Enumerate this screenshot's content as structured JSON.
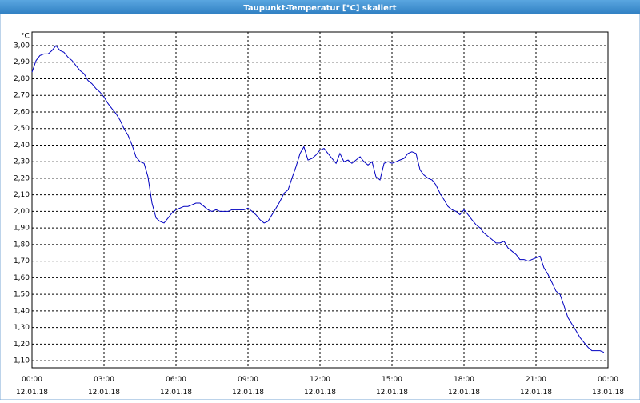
{
  "chart_data": {
    "type": "line",
    "title": "Taupunkt-Temperatur [°C] skaliert",
    "ylabel": "°C",
    "xlim": [
      0,
      24
    ],
    "xticks": [
      {
        "value": 0,
        "label": "00:00"
      },
      {
        "value": 3,
        "label": "03:00"
      },
      {
        "value": 6,
        "label": "06:00"
      },
      {
        "value": 9,
        "label": "09:00"
      },
      {
        "value": 12,
        "label": "12:00"
      },
      {
        "value": 15,
        "label": "15:00"
      },
      {
        "value": 18,
        "label": "18:00"
      },
      {
        "value": 21,
        "label": "21:00"
      },
      {
        "value": 24,
        "label": "00:00"
      }
    ],
    "xtick_dates": [
      "12.01.18",
      "12.01.18",
      "12.01.18",
      "12.01.18",
      "12.01.18",
      "12.01.18",
      "12.01.18",
      "12.01.18",
      "13.01.18"
    ],
    "ylim": [
      1.057,
      3.082
    ],
    "yticks": [
      {
        "value": 1.1,
        "label": "1,10"
      },
      {
        "value": 1.2,
        "label": "1,20"
      },
      {
        "value": 1.3,
        "label": "1,30"
      },
      {
        "value": 1.4,
        "label": "1,40"
      },
      {
        "value": 1.5,
        "label": "1,50"
      },
      {
        "value": 1.6,
        "label": "1,60"
      },
      {
        "value": 1.7,
        "label": "1,70"
      },
      {
        "value": 1.8,
        "label": "1,80"
      },
      {
        "value": 1.9,
        "label": "1,90"
      },
      {
        "value": 2.0,
        "label": "2,00"
      },
      {
        "value": 2.1,
        "label": "2,10"
      },
      {
        "value": 2.2,
        "label": "2,20"
      },
      {
        "value": 2.3,
        "label": "2,30"
      },
      {
        "value": 2.4,
        "label": "2,40"
      },
      {
        "value": 2.5,
        "label": "2,50"
      },
      {
        "value": 2.6,
        "label": "2,60"
      },
      {
        "value": 2.7,
        "label": "2,70"
      },
      {
        "value": 2.8,
        "label": "2,80"
      },
      {
        "value": 2.9,
        "label": "2,90"
      },
      {
        "value": 3.0,
        "label": "3,00"
      }
    ],
    "grid": true,
    "x": [
      0,
      0.17,
      0.33,
      0.5,
      0.67,
      0.83,
      1,
      1.17,
      1.33,
      1.5,
      1.67,
      1.83,
      2,
      2.17,
      2.33,
      2.5,
      2.67,
      2.83,
      3,
      3.17,
      3.33,
      3.5,
      3.67,
      3.83,
      4,
      4.17,
      4.33,
      4.5,
      4.67,
      4.83,
      5,
      5.17,
      5.33,
      5.5,
      5.67,
      5.83,
      6,
      6.17,
      6.33,
      6.5,
      6.67,
      6.83,
      7,
      7.17,
      7.33,
      7.5,
      7.67,
      7.83,
      8,
      8.17,
      8.33,
      8.5,
      8.67,
      8.83,
      9,
      9.17,
      9.33,
      9.5,
      9.67,
      9.83,
      10,
      10.17,
      10.33,
      10.5,
      10.67,
      10.83,
      11,
      11.17,
      11.33,
      11.5,
      11.67,
      11.83,
      12,
      12.17,
      12.33,
      12.5,
      12.67,
      12.83,
      13,
      13.17,
      13.33,
      13.5,
      13.67,
      13.83,
      14,
      14.17,
      14.33,
      14.5,
      14.67,
      14.83,
      15,
      15.17,
      15.33,
      15.5,
      15.67,
      15.83,
      16,
      16.17,
      16.33,
      16.5,
      16.67,
      16.83,
      17,
      17.17,
      17.33,
      17.5,
      17.67,
      17.83,
      18,
      18.17,
      18.33,
      18.5,
      18.67,
      18.83,
      19,
      19.17,
      19.33,
      19.5,
      19.67,
      19.83,
      20,
      20.17,
      20.33,
      20.5,
      20.67,
      20.83,
      21,
      21.17,
      21.33,
      21.5,
      21.67,
      21.83,
      22,
      22.17,
      22.33,
      22.5,
      22.67,
      22.83,
      23,
      23.17,
      23.33,
      23.5,
      23.67,
      23.83
    ],
    "series": [
      {
        "name": "Taupunkt-Temperatur",
        "color": "#0000c0",
        "values": [
          2.84,
          2.91,
          2.94,
          2.95,
          2.95,
          2.97,
          3.0,
          2.97,
          2.96,
          2.93,
          2.91,
          2.88,
          2.85,
          2.83,
          2.79,
          2.77,
          2.74,
          2.72,
          2.69,
          2.65,
          2.62,
          2.59,
          2.55,
          2.5,
          2.46,
          2.4,
          2.33,
          2.3,
          2.29,
          2.21,
          2.05,
          1.96,
          1.94,
          1.93,
          1.96,
          1.99,
          2.01,
          2.02,
          2.03,
          2.03,
          2.04,
          2.05,
          2.05,
          2.03,
          2.01,
          2.0,
          2.01,
          2.0,
          2.0,
          2.0,
          2.01,
          2.01,
          2.01,
          2.01,
          2.02,
          2.0,
          1.98,
          1.95,
          1.93,
          1.94,
          1.98,
          2.02,
          2.06,
          2.11,
          2.13,
          2.2,
          2.27,
          2.35,
          2.39,
          2.31,
          2.32,
          2.34,
          2.37,
          2.38,
          2.35,
          2.32,
          2.29,
          2.35,
          2.3,
          2.31,
          2.29,
          2.31,
          2.33,
          2.3,
          2.28,
          2.3,
          2.21,
          2.19,
          2.29,
          2.3,
          2.29,
          2.3,
          2.31,
          2.32,
          2.35,
          2.36,
          2.35,
          2.25,
          2.22,
          2.2,
          2.19,
          2.16,
          2.11,
          2.07,
          2.03,
          2.01,
          2.0,
          1.98,
          2.01,
          1.98,
          1.95,
          1.92,
          1.9,
          1.87,
          1.85,
          1.83,
          1.81,
          1.81,
          1.82,
          1.78,
          1.76,
          1.74,
          1.71,
          1.71,
          1.7,
          1.71,
          1.72,
          1.73,
          1.66,
          1.62,
          1.57,
          1.52,
          1.5,
          1.43,
          1.36,
          1.32,
          1.28,
          1.24,
          1.21,
          1.18,
          1.16,
          1.16,
          1.16,
          1.15
        ]
      }
    ]
  }
}
